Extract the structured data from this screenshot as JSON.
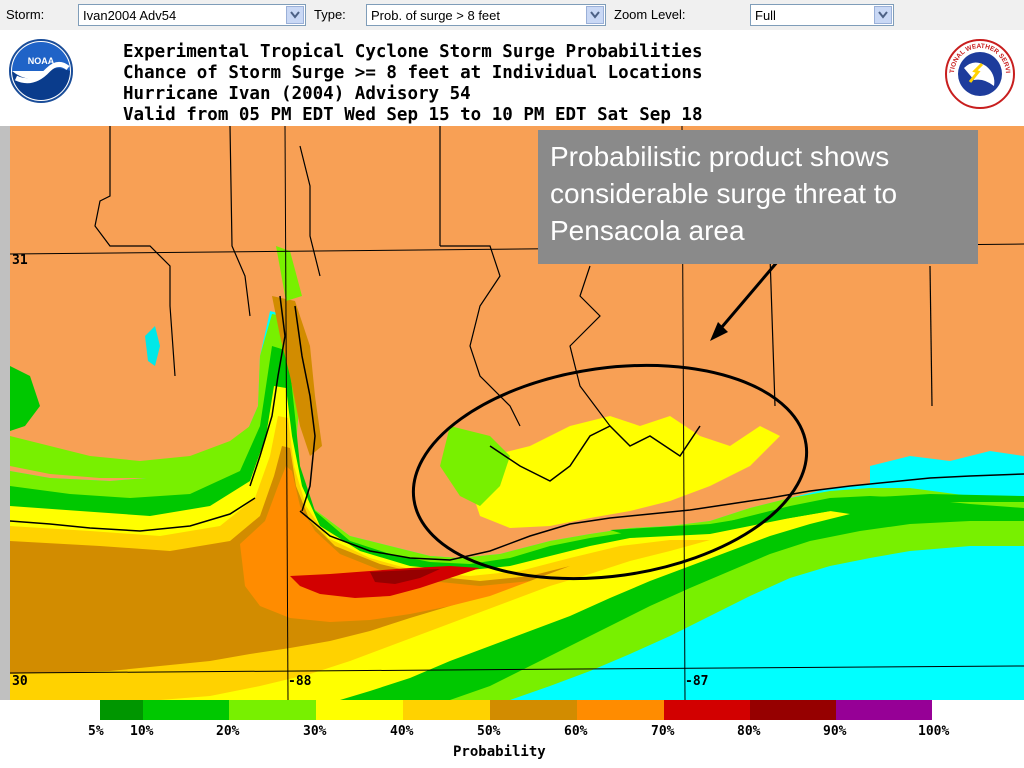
{
  "toolbar": {
    "storm_label": "Storm:",
    "storm_value": "Ivan2004 Adv54",
    "type_label": "Type:",
    "type_value": "Prob. of surge > 8 feet",
    "zoom_label": "Zoom Level:",
    "zoom_value": "Full"
  },
  "header": {
    "line1": "Experimental Tropical Cyclone Storm Surge Probabilities",
    "line2": "Chance of Storm Surge >= 8 feet at Individual Locations",
    "line3": "Hurricane Ivan (2004) Advisory 54",
    "line4": "Valid from 05 PM EDT Wed Sep 15 to 10 PM EDT Sat Sep 18"
  },
  "logos": {
    "noaa_text": "NOAA",
    "nws_text": "NATIONAL WEATHER SERVICE"
  },
  "map": {
    "lat_labels": [
      "31",
      "30"
    ],
    "lon_labels": [
      "-88",
      "-87"
    ],
    "colors": {
      "land": "#f8a055",
      "water": "#00ffff",
      "lake": "#00e8e8"
    }
  },
  "callout": {
    "text": "Probabilistic product shows considerable surge threat to Pensacola area"
  },
  "legend": {
    "title": "Probability",
    "ticks": [
      "5%",
      "10%",
      "20%",
      "30%",
      "40%",
      "50%",
      "60%",
      "70%",
      "80%",
      "90%",
      "100%"
    ],
    "colors": [
      "#009600",
      "#00c800",
      "#78f000",
      "#ffff00",
      "#ffd200",
      "#d28c00",
      "#ff8c00",
      "#d20000",
      "#960000",
      "#960096"
    ]
  }
}
